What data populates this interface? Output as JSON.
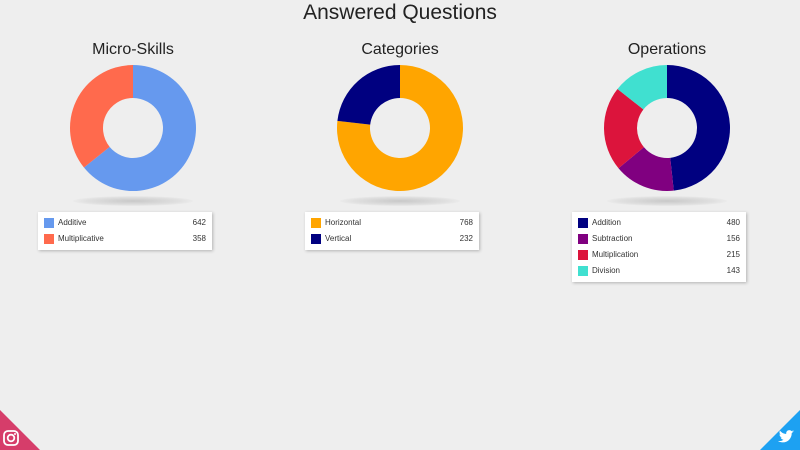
{
  "page": {
    "title": "Answered Questions"
  },
  "social": {
    "left_icon": "instagram-icon",
    "left_color": "#d63d6a",
    "right_icon": "twitter-icon",
    "right_color": "#1da1f2"
  },
  "chart_data": [
    {
      "type": "pie",
      "title": "Micro-Skills",
      "donut": true,
      "start_angle_deg": 0,
      "series": [
        {
          "name": "Additive",
          "value": 642,
          "color": "#6699ee"
        },
        {
          "name": "Multiplicative",
          "value": 358,
          "color": "#ff6a4d"
        }
      ]
    },
    {
      "type": "pie",
      "title": "Categories",
      "donut": true,
      "start_angle_deg": 0,
      "series": [
        {
          "name": "Horizontal",
          "value": 768,
          "color": "#ffa500"
        },
        {
          "name": "Vertical",
          "value": 232,
          "color": "#000080"
        }
      ]
    },
    {
      "type": "pie",
      "title": "Operations",
      "donut": true,
      "start_angle_deg": 0,
      "series": [
        {
          "name": "Addition",
          "value": 480,
          "color": "#000080"
        },
        {
          "name": "Subtraction",
          "value": 156,
          "color": "#800080"
        },
        {
          "name": "Multiplication",
          "value": 215,
          "color": "#dc143c"
        },
        {
          "name": "Division",
          "value": 143,
          "color": "#40e0d0"
        }
      ]
    }
  ]
}
